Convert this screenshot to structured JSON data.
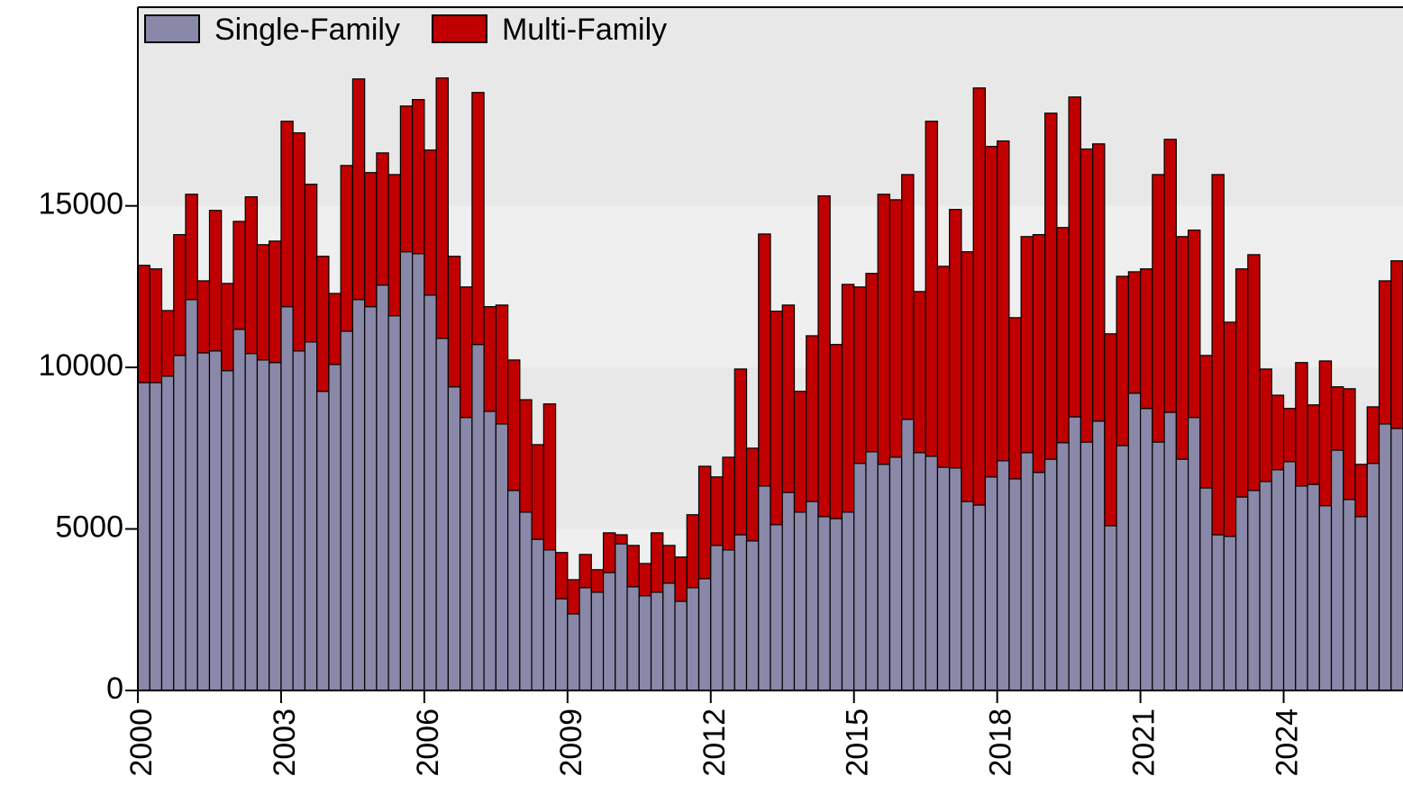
{
  "chart_data": {
    "type": "stacked_bar",
    "categories": [
      "2000",
      null,
      null,
      null,
      null,
      null,
      null,
      null,
      null,
      null,
      null,
      null,
      "2003",
      null,
      null,
      null,
      null,
      null,
      null,
      null,
      null,
      null,
      null,
      null,
      "2006",
      null,
      null,
      null,
      null,
      null,
      null,
      null,
      null,
      null,
      null,
      null,
      "2009",
      null,
      null,
      null,
      null,
      null,
      null,
      null,
      null,
      null,
      null,
      null,
      "2012",
      null,
      null,
      null,
      null,
      null,
      null,
      null,
      null,
      null,
      null,
      null,
      "2015",
      null,
      null,
      null,
      null,
      null,
      null,
      null,
      null,
      null,
      null,
      null,
      "2018",
      null,
      null,
      null,
      null,
      null,
      null,
      null,
      null,
      null,
      null,
      null,
      "2021",
      null,
      null,
      null,
      null,
      null,
      null,
      null,
      null,
      null,
      null,
      null,
      "2024",
      null,
      null,
      null,
      null,
      null,
      null,
      null,
      null,
      null
    ],
    "series": [
      {
        "name": "Single-Family",
        "color": "#8a88a8",
        "values": [
          9530,
          9530,
          9730,
          10370,
          12100,
          10450,
          10510,
          9900,
          11180,
          10430,
          10230,
          10150,
          11880,
          10510,
          10790,
          9260,
          10090,
          11120,
          12100,
          11880,
          12550,
          11600,
          13580,
          13520,
          12240,
          10900,
          9400,
          8450,
          10710,
          8640,
          8250,
          6190,
          5520,
          4680,
          4350,
          2840,
          2370,
          3180,
          3040,
          3650,
          4540,
          3210,
          2930,
          3040,
          3320,
          2760,
          3180,
          3460,
          4490,
          4350,
          4820,
          4630,
          6330,
          5130,
          6130,
          5520,
          5850,
          5380,
          5320,
          5520,
          7030,
          7390,
          7000,
          7220,
          8390,
          7360,
          7250,
          6910,
          6890,
          5850,
          5740,
          6610,
          7110,
          6550,
          7360,
          6750,
          7160,
          7670,
          8470,
          7690,
          8340,
          5100,
          7580,
          9200,
          8730,
          7690,
          8610,
          7160,
          8450,
          6270,
          4820,
          4770,
          5990,
          6190,
          6470,
          6830,
          7080,
          6330,
          6380,
          5720,
          7440,
          5910,
          5380,
          7030,
          8250,
          8110
        ]
      },
      {
        "name": "Multi-Family",
        "color": "#c00000",
        "values": [
          3630,
          3520,
          2030,
          3740,
          3260,
          2230,
          4350,
          2700,
          3340,
          4850,
          3570,
          3760,
          5740,
          6750,
          4880,
          4180,
          2200,
          5130,
          6830,
          4150,
          4090,
          4370,
          4510,
          4770,
          4490,
          8060,
          4040,
          4040,
          7800,
          3240,
          3680,
          4040,
          3480,
          2930,
          4520,
          1430,
          1060,
          1030,
          700,
          1230,
          280,
          1280,
          1000,
          1840,
          1170,
          1370,
          2260,
          3480,
          2120,
          2870,
          5130,
          2870,
          7800,
          6610,
          5800,
          3740,
          5130,
          9930,
          5390,
          7050,
          5460,
          5520,
          8360,
          7970,
          7580,
          4990,
          10370,
          6220,
          8000,
          7730,
          12910,
          10230,
          9900,
          4990,
          6690,
          7360,
          10710,
          6660,
          9900,
          9070,
          8580,
          5940,
          5240,
          3760,
          4320,
          8280,
          8450,
          6890,
          5800,
          4100,
          11150,
          6630,
          7060,
          7300,
          3480,
          2310,
          1650,
          3820,
          2460,
          4480,
          1960,
          3430,
          1620,
          1750,
          4430,
          5190
        ]
      }
    ],
    "ylim": [
      0,
      21150
    ],
    "yticks": [
      0,
      5000,
      10000,
      15000
    ],
    "legend": "upper left"
  }
}
